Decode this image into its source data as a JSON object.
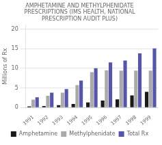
{
  "chart_data": {
    "type": "bar",
    "title": "AMPHETAMINE AND METHYLPHENIDATE\nPRESCRIPTIONS (IMS HEALTH, NATIONAL\nPRESCRIPTION AUDIT PLUS)",
    "categories": [
      "1991",
      "1992",
      "1993",
      "1994",
      "1995",
      "1996",
      "1997",
      "1998",
      "1999"
    ],
    "series": [
      {
        "name": "Amphetamine",
        "color": "#1a1a1a",
        "values": [
          0.3,
          0.4,
          0.6,
          0.9,
          1.3,
          1.8,
          2.1,
          3.1,
          4.0
        ]
      },
      {
        "name": "Methylphenidate",
        "color": "#aaaaaa",
        "values": [
          2.0,
          3.0,
          3.8,
          5.7,
          9.0,
          9.5,
          9.4,
          9.4,
          9.4
        ]
      },
      {
        "name": "Total Rx",
        "color": "#5555aa",
        "values": [
          2.6,
          3.8,
          4.7,
          6.9,
          10.0,
          11.5,
          12.0,
          13.8,
          15.1
        ]
      }
    ],
    "ylabel": "Millions of Rx",
    "ylim": [
      0,
      21
    ],
    "yticks": [
      0,
      5,
      10,
      15,
      20
    ],
    "grid": true,
    "legend": "bottom"
  }
}
